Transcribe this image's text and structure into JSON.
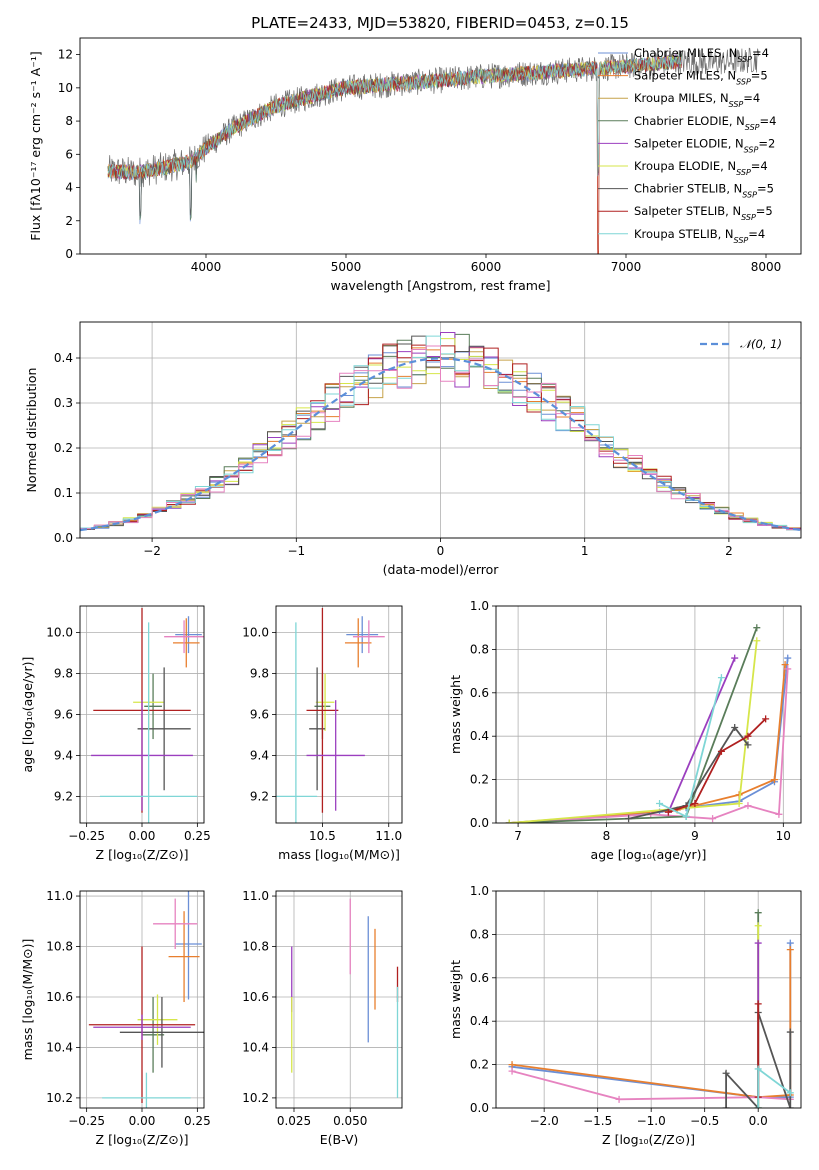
{
  "figure": {
    "title": "PLATE=2433, MJD=53820, FIBERID=0453, z=0.15",
    "model_colors": [
      "#6b8fd6",
      "#e87f2e",
      "#c6a24a",
      "#5a7d5a",
      "#9b3fbf",
      "#d6e64a",
      "#555555",
      "#b02020",
      "#7fd6d6"
    ],
    "model_colors_extra": [
      "#e683c0"
    ],
    "legend_entries": [
      {
        "name": "Chabrier MILES",
        "nssp": "4"
      },
      {
        "name": "Salpeter MILES",
        "nssp": "5"
      },
      {
        "name": "Kroupa MILES",
        "nssp": "4"
      },
      {
        "name": "Chabrier ELODIE",
        "nssp": "4"
      },
      {
        "name": "Salpeter ELODIE",
        "nssp": "2"
      },
      {
        "name": "Kroupa ELODIE",
        "nssp": "4"
      },
      {
        "name": "Chabrier STELIB",
        "nssp": "5"
      },
      {
        "name": "Salpeter STELIB",
        "nssp": "5"
      },
      {
        "name": "Kroupa STELIB",
        "nssp": "4"
      }
    ]
  },
  "chart_data": [
    {
      "id": "spectrum",
      "type": "line",
      "xlabel": "wavelength [Angstrom, rest frame]",
      "ylabel": "Flux [fλ10⁻¹⁷ erg cm⁻² s⁻¹ A⁻¹]",
      "xlim": [
        3100,
        8250
      ],
      "ylim": [
        0,
        13
      ],
      "xticks": [
        4000,
        5000,
        6000,
        7000,
        8000
      ],
      "yticks": [
        0,
        2,
        4,
        6,
        8,
        10,
        12
      ],
      "continuum": {
        "x": [
          3300,
          3500,
          3700,
          3900,
          4000,
          4200,
          4500,
          4800,
          5000,
          5300,
          5600,
          6000,
          6500,
          7000,
          7400,
          7600,
          7800,
          7950
        ],
        "y": [
          5.0,
          4.9,
          5.2,
          5.6,
          6.4,
          7.6,
          8.9,
          9.6,
          10.0,
          10.2,
          10.4,
          10.7,
          11.0,
          11.3,
          11.6,
          11.5,
          11.6,
          11.7
        ]
      },
      "absorption_features": [
        {
          "x": 3530,
          "depth": 5.0
        },
        {
          "x": 3890,
          "depth": 5.8
        },
        {
          "x": 3930,
          "depth": 2.5
        },
        {
          "x": 6800,
          "depth": 11.0
        },
        {
          "x": 7420,
          "depth": 11.5
        }
      ],
      "data_x_range": [
        3300,
        7950
      ],
      "model_x_range": [
        3300,
        7400
      ]
    },
    {
      "id": "residuals",
      "type": "bar",
      "xlabel": "(data-model)/error",
      "ylabel": "Normed distribution",
      "xlim": [
        -2.5,
        2.5
      ],
      "ylim": [
        0,
        0.48
      ],
      "xticks": [
        -2,
        -1,
        0,
        1,
        2
      ],
      "yticks": [
        0.0,
        0.1,
        0.2,
        0.3,
        0.4
      ],
      "bin_width": 0.1,
      "series_name": "𝒩(0, 1)",
      "legend_position": "top-right",
      "grid": true
    },
    {
      "id": "age_vs_Z",
      "type": "scatter",
      "xlabel": "Z [log₁₀(Z/Z⊙)]",
      "ylabel": "age  [log₁₀(age/yr)]",
      "xlim": [
        -0.28,
        0.28
      ],
      "ylim": [
        9.07,
        10.13
      ],
      "xticks": [
        -0.25,
        0.0,
        0.25
      ],
      "yticks": [
        9.2,
        9.4,
        9.6,
        9.8,
        10.0
      ],
      "errorbars": [
        {
          "color": 0,
          "x": 0.21,
          "y": 9.99,
          "xerr": 0.06,
          "yerr": 0.09
        },
        {
          "color": 1,
          "x": 0.2,
          "y": 9.95,
          "xerr": 0.06,
          "yerr": 0.12
        },
        {
          "color": 9,
          "x": 0.19,
          "y": 9.98,
          "xerr": 0.09,
          "yerr": 0.08
        },
        {
          "color": 3,
          "x": 0.05,
          "y": 9.64,
          "xerr": 0.04,
          "yerr": 0.16
        },
        {
          "color": 5,
          "x": 0.03,
          "y": 9.66,
          "xerr": 0.07,
          "yerr": 0.14
        },
        {
          "color": 6,
          "x": 0.1,
          "y": 9.53,
          "xerr": 0.12,
          "yerr": 0.3
        },
        {
          "color": 7,
          "x": 0.0,
          "y": 9.62,
          "xerr": 0.22,
          "yerr": 0.5
        },
        {
          "color": 4,
          "x": 0.0,
          "y": 9.4,
          "xerr": 0.23,
          "yerr": 0.27
        },
        {
          "color": 8,
          "x": 0.03,
          "y": 9.2,
          "xerr": 0.22,
          "yerr": 0.85
        }
      ],
      "grid": true
    },
    {
      "id": "age_vs_mass",
      "type": "scatter",
      "xlabel": "mass [log₁₀(M/M⊙)]",
      "ylabel": "",
      "xlim": [
        10.15,
        11.1
      ],
      "ylim": [
        9.07,
        10.13
      ],
      "xticks": [
        10.5,
        11.0
      ],
      "yticks": [
        9.2,
        9.4,
        9.6,
        9.8,
        10.0
      ],
      "errorbars": [
        {
          "color": 0,
          "x": 10.8,
          "y": 9.99,
          "xerr": 0.12,
          "yerr": 0.09
        },
        {
          "color": 1,
          "x": 10.77,
          "y": 9.95,
          "xerr": 0.1,
          "yerr": 0.12
        },
        {
          "color": 9,
          "x": 10.85,
          "y": 9.98,
          "xerr": 0.12,
          "yerr": 0.08
        },
        {
          "color": 3,
          "x": 10.5,
          "y": 9.64,
          "xerr": 0.06,
          "yerr": 0.16
        },
        {
          "color": 5,
          "x": 10.52,
          "y": 9.66,
          "xerr": 0.07,
          "yerr": 0.14
        },
        {
          "color": 6,
          "x": 10.46,
          "y": 9.53,
          "xerr": 0.06,
          "yerr": 0.3
        },
        {
          "color": 7,
          "x": 10.5,
          "y": 9.62,
          "xerr": 0.12,
          "yerr": 0.5
        },
        {
          "color": 4,
          "x": 10.6,
          "y": 9.4,
          "xerr": 0.22,
          "yerr": 0.27
        },
        {
          "color": 8,
          "x": 10.3,
          "y": 9.2,
          "xerr": 0.16,
          "yerr": 0.85
        }
      ],
      "grid": true
    },
    {
      "id": "mass_weight_vs_age",
      "type": "line",
      "xlabel": "age  [log₁₀(age/yr)]",
      "ylabel": "mass weight",
      "xlim": [
        6.75,
        10.2
      ],
      "ylim": [
        0.0,
        1.0
      ],
      "xticks": [
        7,
        8,
        9,
        10
      ],
      "yticks": [
        0.0,
        0.2,
        0.4,
        0.6,
        0.8,
        1.0
      ],
      "series": [
        {
          "color": 0,
          "x": [
            6.9,
            8.6,
            8.9,
            9.5,
            9.9,
            10.05
          ],
          "y": [
            0.0,
            0.05,
            0.07,
            0.1,
            0.19,
            0.76
          ]
        },
        {
          "color": 1,
          "x": [
            6.9,
            8.8,
            9.5,
            9.9,
            10.02
          ],
          "y": [
            0.0,
            0.06,
            0.13,
            0.2,
            0.73
          ]
        },
        {
          "color": 9,
          "x": [
            6.9,
            8.5,
            9.2,
            9.6,
            9.95,
            10.05
          ],
          "y": [
            0.0,
            0.04,
            0.02,
            0.08,
            0.04,
            0.71
          ]
        },
        {
          "color": 3,
          "x": [
            6.9,
            8.9,
            9.7
          ],
          "y": [
            0.0,
            0.03,
            0.9
          ]
        },
        {
          "color": 4,
          "x": [
            8.7,
            9.45
          ],
          "y": [
            0.05,
            0.76
          ]
        },
        {
          "color": 5,
          "x": [
            6.9,
            9.5,
            9.7
          ],
          "y": [
            0.0,
            0.09,
            0.84
          ]
        },
        {
          "color": 6,
          "x": [
            8.25,
            8.9,
            9.45,
            9.6
          ],
          "y": [
            0.02,
            0.08,
            0.44,
            0.36
          ]
        },
        {
          "color": 7,
          "x": [
            8.7,
            9.0,
            9.3,
            9.6,
            9.8
          ],
          "y": [
            0.05,
            0.09,
            0.33,
            0.4,
            0.48
          ]
        },
        {
          "color": 8,
          "x": [
            8.6,
            8.9,
            9.3
          ],
          "y": [
            0.09,
            0.03,
            0.67
          ]
        }
      ],
      "grid": true
    },
    {
      "id": "mass_vs_Z",
      "type": "scatter",
      "xlabel": "Z [log₁₀(Z/Z⊙)]",
      "ylabel": "mass [log₁₀(M/M⊙)]",
      "xlim": [
        -0.28,
        0.28
      ],
      "ylim": [
        10.16,
        11.02
      ],
      "xticks": [
        -0.25,
        0.0,
        0.25
      ],
      "yticks": [
        10.2,
        10.4,
        10.6,
        10.8,
        11.0
      ],
      "errorbars": [
        {
          "color": 0,
          "x": 0.21,
          "y": 10.81,
          "xerr": 0.06,
          "yerr": 0.22
        },
        {
          "color": 1,
          "x": 0.19,
          "y": 10.76,
          "xerr": 0.07,
          "yerr": 0.18
        },
        {
          "color": 9,
          "x": 0.15,
          "y": 10.89,
          "xerr": 0.1,
          "yerr": 0.1
        },
        {
          "color": 3,
          "x": 0.05,
          "y": 10.45,
          "xerr": 0.05,
          "yerr": 0.15
        },
        {
          "color": 5,
          "x": 0.07,
          "y": 10.51,
          "xerr": 0.09,
          "yerr": 0.1
        },
        {
          "color": 6,
          "x": 0.09,
          "y": 10.46,
          "xerr": 0.19,
          "yerr": 0.14
        },
        {
          "color": 7,
          "x": 0.0,
          "y": 10.49,
          "xerr": 0.24,
          "yerr": 0.31
        },
        {
          "color": 4,
          "x": 0.0,
          "y": 10.48,
          "xerr": 0.22,
          "yerr": 0.05
        },
        {
          "color": 8,
          "x": 0.02,
          "y": 10.2,
          "xerr": 0.2,
          "yerr": 0.1
        }
      ],
      "grid": true
    },
    {
      "id": "mass_vs_ebv",
      "type": "scatter",
      "xlabel": "E(B-V)",
      "ylabel": "",
      "xlim": [
        0.017,
        0.073
      ],
      "ylim": [
        10.16,
        11.02
      ],
      "xticks": [
        0.025,
        0.05
      ],
      "yticks": [
        10.2,
        10.4,
        10.6,
        10.8,
        11.0
      ],
      "errorbars": [
        {
          "color": 4,
          "x": 0.024,
          "y": 10.67,
          "xerr": 0.0,
          "yerr": 0.13
        },
        {
          "color": 5,
          "x": 0.024,
          "y": 10.45,
          "xerr": 0.0,
          "yerr": 0.15
        },
        {
          "color": 9,
          "x": 0.05,
          "y": 10.84,
          "xerr": 0.0,
          "yerr": 0.15
        },
        {
          "color": 0,
          "x": 0.058,
          "y": 10.67,
          "xerr": 0.0,
          "yerr": 0.25
        },
        {
          "color": 1,
          "x": 0.061,
          "y": 10.71,
          "xerr": 0.0,
          "yerr": 0.16
        },
        {
          "color": 7,
          "x": 0.071,
          "y": 10.65,
          "xerr": 0.0,
          "yerr": 0.07
        },
        {
          "color": 8,
          "x": 0.071,
          "y": 10.42,
          "xerr": 0.0,
          "yerr": 0.22
        }
      ],
      "grid": true
    },
    {
      "id": "mass_weight_vs_Z",
      "type": "line",
      "xlabel": "Z [log₁₀(Z/Z⊙)]",
      "ylabel": "mass weight",
      "xlim": [
        -2.45,
        0.4
      ],
      "ylim": [
        0.0,
        1.0
      ],
      "xticks": [
        -2.0,
        -1.5,
        -1.0,
        -0.5,
        0.0
      ],
      "yticks": [
        0.0,
        0.2,
        0.4,
        0.6,
        0.8,
        1.0
      ],
      "series": [
        {
          "color": 0,
          "x": [
            -2.3,
            0.0,
            0.3,
            0.3
          ],
          "y": [
            0.19,
            0.05,
            0.05,
            0.76
          ]
        },
        {
          "color": 1,
          "x": [
            -2.3,
            0.0,
            0.3,
            0.3
          ],
          "y": [
            0.2,
            0.05,
            0.06,
            0.73
          ]
        },
        {
          "color": 9,
          "x": [
            -2.3,
            -1.3,
            0.0,
            0.3
          ],
          "y": [
            0.17,
            0.04,
            0.05,
            0.04
          ]
        },
        {
          "color": 3,
          "x": [
            0.0,
            0.0
          ],
          "y": [
            0.0,
            0.9
          ]
        },
        {
          "color": 5,
          "x": [
            0.0,
            0.0
          ],
          "y": [
            0.0,
            0.84
          ]
        },
        {
          "color": 4,
          "x": [
            0.0,
            0.0
          ],
          "y": [
            0.05,
            0.76
          ]
        },
        {
          "color": 6,
          "x": [
            -0.3,
            -0.3,
            0.0,
            0.0,
            0.3,
            0.3
          ],
          "y": [
            0.0,
            0.16,
            0.0,
            0.44,
            0.0,
            0.35
          ]
        },
        {
          "color": 7,
          "x": [
            0.0,
            0.0
          ],
          "y": [
            0.05,
            0.48
          ]
        },
        {
          "color": 8,
          "x": [
            0.0,
            0.0,
            0.3
          ],
          "y": [
            0.0,
            0.18,
            0.07
          ]
        }
      ],
      "grid": true
    }
  ]
}
